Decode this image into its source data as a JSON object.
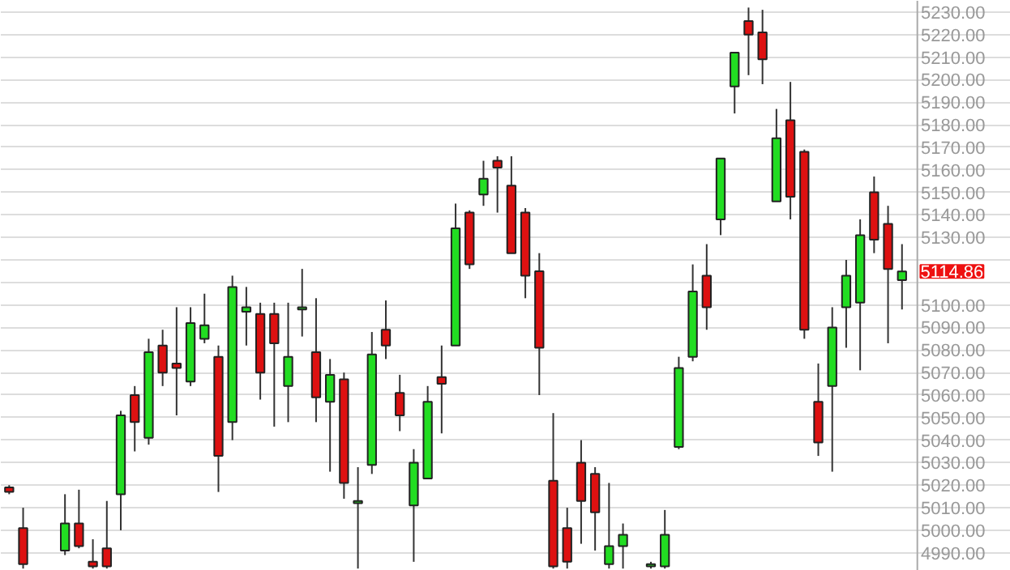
{
  "chart_data": {
    "type": "candlestick",
    "categories": [
      null,
      null,
      null,
      null,
      null,
      null,
      null,
      null,
      null,
      null,
      null,
      null,
      null,
      null,
      null,
      null,
      null,
      null,
      null,
      null,
      null,
      null,
      null,
      null,
      null,
      null,
      null,
      null,
      null,
      null,
      null,
      null,
      null,
      null,
      null,
      null,
      null,
      null,
      null,
      null,
      null,
      null,
      null,
      null,
      null,
      null,
      null,
      null,
      null,
      null,
      null,
      null,
      null,
      null,
      null,
      null,
      null,
      null,
      null,
      null,
      null,
      null,
      null,
      null,
      null
    ],
    "ohlc": [
      [
        5019,
        5020,
        5016,
        5017
      ],
      [
        5001,
        5010,
        4983,
        4985
      ],
      null,
      null,
      [
        4991,
        5016,
        4989,
        5003
      ],
      [
        5003,
        5018,
        4992,
        4993
      ],
      [
        4986,
        4996,
        4983,
        4984
      ],
      [
        4992,
        5013,
        4983,
        4984
      ],
      [
        5016,
        5053,
        5000,
        5051
      ],
      [
        5060,
        5064,
        5035,
        5048
      ],
      [
        5041,
        5085,
        5038,
        5079
      ],
      [
        5082,
        5089,
        5064,
        5070
      ],
      [
        5074,
        5099,
        5051,
        5072
      ],
      [
        5066,
        5099,
        5064,
        5092
      ],
      [
        5085,
        5105,
        5083,
        5091
      ],
      [
        5077,
        5082,
        5017,
        5033
      ],
      [
        5048,
        5113,
        5040,
        5108
      ],
      [
        5097,
        5108,
        5082,
        5099
      ],
      [
        5096,
        5101,
        5058,
        5070
      ],
      [
        5096,
        5101,
        5046,
        5083
      ],
      [
        5064,
        5101,
        5048,
        5077
      ],
      [
        5098,
        5116,
        5086,
        5099
      ],
      [
        5079,
        5103,
        5048,
        5059
      ],
      [
        5057,
        5076,
        5026,
        5069
      ],
      [
        5067,
        5070,
        5014,
        5021
      ],
      [
        5012,
        5028,
        4983,
        5013
      ],
      [
        5029,
        5088,
        5025,
        5078
      ],
      [
        5089,
        5102,
        5076,
        5082
      ],
      [
        5061,
        5069,
        5044,
        5051
      ],
      [
        5011,
        5036,
        4986,
        5030
      ],
      [
        5023,
        5064,
        5023,
        5057
      ],
      [
        5068,
        5082,
        5043,
        5065
      ],
      [
        5082,
        5145,
        5082,
        5134
      ],
      [
        5141,
        5142,
        5116,
        5118
      ],
      [
        5149,
        5164,
        5144,
        5156
      ],
      [
        5164,
        5166,
        5141,
        5161
      ],
      [
        5153,
        5166,
        5123,
        5123
      ],
      [
        5141,
        5143,
        5103,
        5113
      ],
      [
        5115,
        5123,
        5060,
        5081
      ],
      [
        5022,
        5052,
        4983,
        4984
      ],
      [
        5001,
        5010,
        4983,
        4986
      ],
      [
        5030,
        5040,
        4994,
        5013
      ],
      [
        5025,
        5028,
        4991,
        5008
      ],
      [
        4985,
        5021,
        4983,
        4993
      ],
      [
        4993,
        5003,
        4983,
        4998
      ],
      null,
      [
        4984,
        4986,
        4983,
        4985
      ],
      [
        4984,
        5009,
        4983,
        4998
      ],
      [
        5037,
        5077,
        5036,
        5072
      ],
      [
        5077,
        5118,
        5075,
        5106
      ],
      [
        5113,
        5127,
        5089,
        5099
      ],
      [
        5138,
        5165,
        5131,
        5165
      ],
      [
        5197,
        5212,
        5185,
        5212
      ],
      [
        5226,
        5232,
        5202,
        5220
      ],
      [
        5221,
        5231,
        5198,
        5209
      ],
      [
        5146,
        5187,
        5146,
        5174
      ],
      [
        5182,
        5199,
        5138,
        5148
      ],
      [
        5168,
        5169,
        5085,
        5089
      ],
      [
        5057,
        5074,
        5033,
        5039
      ],
      [
        5064,
        5099,
        5026,
        5090
      ],
      [
        5099,
        5120,
        5081,
        5113
      ],
      [
        5101,
        5138,
        5071,
        5131
      ],
      [
        5150,
        5157,
        5123,
        5129
      ],
      [
        5136,
        5144,
        5083,
        5116
      ],
      [
        5111,
        5127,
        5098,
        5114.86
      ]
    ],
    "ylim": [
      4982,
      5235
    ],
    "yticks": [
      {
        "value": 4990,
        "label": "4990.00"
      },
      {
        "value": 5000,
        "label": "5000.00"
      },
      {
        "value": 5010,
        "label": "5010.00"
      },
      {
        "value": 5020,
        "label": "5020.00"
      },
      {
        "value": 5030,
        "label": "5030.00"
      },
      {
        "value": 5040,
        "label": "5040.00"
      },
      {
        "value": 5050,
        "label": "5050.00"
      },
      {
        "value": 5060,
        "label": "5060.00"
      },
      {
        "value": 5070,
        "label": "5070.00"
      },
      {
        "value": 5080,
        "label": "5080.00"
      },
      {
        "value": 5090,
        "label": "5090.00"
      },
      {
        "value": 5100,
        "label": "5100.00"
      },
      {
        "value": 5110,
        "label": null
      },
      {
        "value": 5120,
        "label": null
      },
      {
        "value": 5130,
        "label": "5130.00"
      },
      {
        "value": 5140,
        "label": "5140.00"
      },
      {
        "value": 5150,
        "label": "5150.00"
      },
      {
        "value": 5160,
        "label": "5160.00"
      },
      {
        "value": 5170,
        "label": "5170.00"
      },
      {
        "value": 5180,
        "label": "5180.00"
      },
      {
        "value": 5190,
        "label": "5190.00"
      },
      {
        "value": 5200,
        "label": "5200.00"
      },
      {
        "value": 5210,
        "label": "5210.00"
      },
      {
        "value": 5220,
        "label": "5220.00"
      },
      {
        "value": 5230,
        "label": "5230.00"
      }
    ],
    "grid": "y",
    "annotations": [
      "5114.86"
    ]
  }
}
